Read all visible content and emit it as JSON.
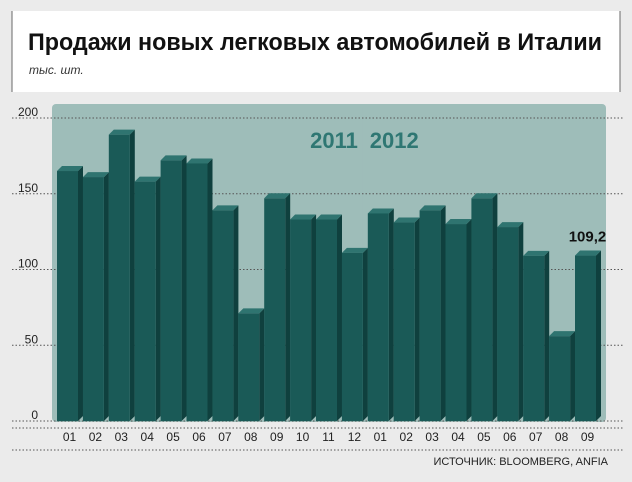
{
  "chart_data": {
    "type": "bar",
    "title": "Продажи новых легковых автомобилей в Италии",
    "subtitle": "тыс. шт.",
    "source": "ИСТОЧНИК: BLOOMBERG, ANFIA",
    "ylim": [
      0,
      200
    ],
    "yticks": [
      0,
      50,
      100,
      150,
      200
    ],
    "grid": true,
    "bar_color": "#1a5a57",
    "group_bg_color": "#9ebdb9",
    "group_label_color": "#2f7773",
    "groups": [
      {
        "label": "2011",
        "categories": [
          "01",
          "02",
          "03",
          "04",
          "05",
          "06",
          "07",
          "08",
          "09",
          "10",
          "11",
          "12"
        ],
        "values": [
          165,
          161,
          189,
          158,
          172,
          170,
          139,
          71,
          147,
          133,
          133,
          111
        ]
      },
      {
        "label": "2012",
        "categories": [
          "01",
          "02",
          "03",
          "04",
          "05",
          "06",
          "07",
          "08",
          "09"
        ],
        "values": [
          137,
          131,
          139,
          130,
          147,
          128,
          109,
          56,
          109.2
        ]
      }
    ],
    "annotation": {
      "text": "109,2",
      "group": 1,
      "index": 8
    }
  }
}
